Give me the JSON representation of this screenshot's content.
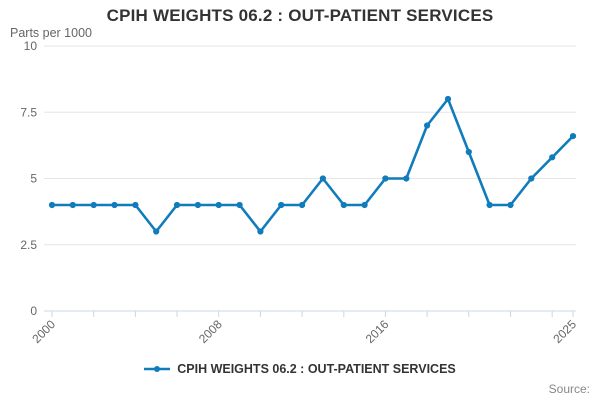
{
  "header": {
    "title": "CPIH WEIGHTS 06.2 : OUT-PATIENT SERVICES",
    "unit_label": "Parts per 1000"
  },
  "legend": {
    "label": "CPIH WEIGHTS 06.2 : OUT-PATIENT SERVICES"
  },
  "footer": {
    "source_label": "Source:"
  },
  "colors": {
    "line": "#107cbb",
    "marker": "#107cbb",
    "grid": "#e6e6e6",
    "axis": "#ccd6eb",
    "tick_label": "#666666",
    "title": "#333333",
    "legend_text": "#333333",
    "source_text": "#888888"
  },
  "chart_data": {
    "type": "line",
    "title": "CPIH WEIGHTS 06.2 : OUT-PATIENT SERVICES",
    "ylabel": "Parts per 1000",
    "x": [
      2000,
      2001,
      2002,
      2003,
      2004,
      2005,
      2006,
      2007,
      2008,
      2009,
      2010,
      2011,
      2012,
      2013,
      2014,
      2015,
      2016,
      2017,
      2018,
      2019,
      2020,
      2021,
      2022,
      2023,
      2024,
      2025
    ],
    "series": [
      {
        "name": "CPIH WEIGHTS 06.2 : OUT-PATIENT SERVICES",
        "values": [
          4,
          4,
          4,
          4,
          4,
          3,
          4,
          4,
          4,
          4,
          3,
          4,
          4,
          5,
          4,
          4,
          5,
          5,
          7,
          8,
          6,
          4,
          4,
          5,
          5.8,
          6.6
        ]
      }
    ],
    "ylim": [
      0,
      10
    ],
    "yticks": [
      0,
      2.5,
      5,
      7.5,
      10
    ],
    "ytick_labels": [
      "0",
      "2.5",
      "5",
      "7.5",
      "10"
    ],
    "xtick_interval": 2,
    "xtick_label_years": [
      2000,
      2008,
      2016,
      2025
    ],
    "xtick_labels": [
      "2000",
      "2008",
      "2016",
      "2025"
    ],
    "grid": true,
    "legend_position": "bottom",
    "marker": "circle"
  }
}
